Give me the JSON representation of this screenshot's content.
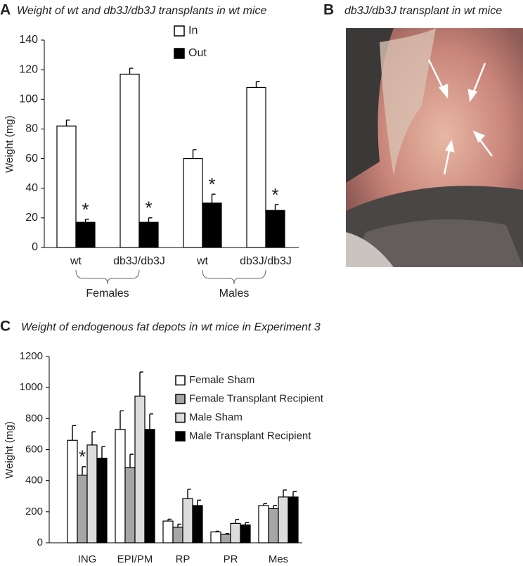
{
  "chart_data": [
    {
      "panel": "A",
      "type": "bar",
      "title": "Weight of wt  and db3J/db3J transplants in  wt mice",
      "y_label": "Weight (mg)",
      "categories": [
        "wt",
        "db3J/db3J",
        "wt",
        "db3J/db3J"
      ],
      "groups": [
        "Females",
        "Males"
      ],
      "series": [
        {
          "name": "In",
          "color": "#ffffff",
          "values": [
            82,
            117,
            60,
            108
          ],
          "errors": [
            4,
            4,
            6,
            4
          ]
        },
        {
          "name": "Out",
          "color": "#000000",
          "values": [
            17,
            17,
            30,
            25
          ],
          "errors": [
            2,
            3,
            6,
            4
          ],
          "markers": [
            "*",
            "*",
            "*",
            "*"
          ]
        }
      ],
      "ylim": [
        0,
        140
      ],
      "yticks": [
        0,
        20,
        40,
        60,
        80,
        100,
        120,
        140
      ]
    },
    {
      "panel": "B",
      "type": "image",
      "title": "db3J/db3J transplant in  wt mice"
    },
    {
      "panel": "C",
      "type": "bar",
      "title": "Weight of endogenous fat depots in wt mice in Experiment 3",
      "y_label": "Weight (mg)",
      "categories": [
        "ING",
        "EPI/PM",
        "RP",
        "PR",
        "Mes"
      ],
      "series": [
        {
          "name": "Female Sham",
          "color": "#ffffff",
          "values": [
            660,
            730,
            140,
            70,
            240
          ],
          "errors": [
            95,
            120,
            12,
            5,
            12
          ]
        },
        {
          "name": "Female Transplant Recipient",
          "color": "#a6a6a6",
          "values": [
            435,
            485,
            100,
            55,
            220
          ],
          "errors": [
            55,
            85,
            20,
            5,
            20
          ],
          "markers": [
            "*",
            null,
            null,
            null,
            null
          ]
        },
        {
          "name": "Male Sham",
          "color": "#dcdcdc",
          "values": [
            630,
            945,
            285,
            125,
            295
          ],
          "errors": [
            85,
            155,
            60,
            25,
            45
          ]
        },
        {
          "name": "Male Transplant Recipient",
          "color": "#000000",
          "values": [
            545,
            730,
            240,
            115,
            295
          ],
          "errors": [
            75,
            100,
            35,
            15,
            35
          ]
        }
      ],
      "ylim": [
        0,
        1200
      ],
      "yticks": [
        0,
        200,
        400,
        600,
        800,
        1000,
        1200
      ]
    }
  ]
}
